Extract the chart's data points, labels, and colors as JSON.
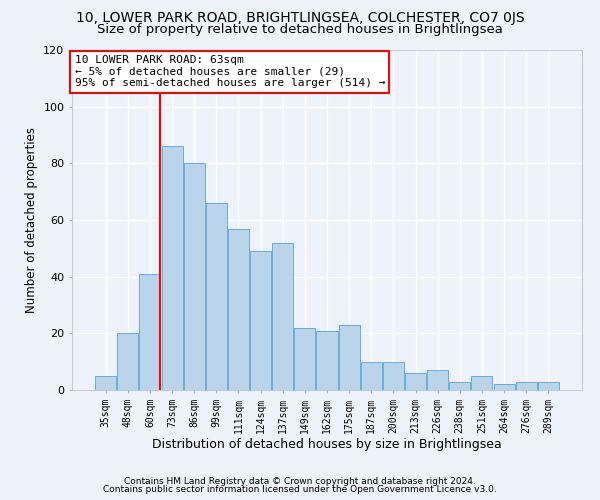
{
  "title1": "10, LOWER PARK ROAD, BRIGHTLINGSEA, COLCHESTER, CO7 0JS",
  "title2": "Size of property relative to detached houses in Brightlingsea",
  "xlabel": "Distribution of detached houses by size in Brightlingsea",
  "ylabel": "Number of detached properties",
  "categories": [
    "35sqm",
    "48sqm",
    "60sqm",
    "73sqm",
    "86sqm",
    "99sqm",
    "111sqm",
    "124sqm",
    "137sqm",
    "149sqm",
    "162sqm",
    "175sqm",
    "187sqm",
    "200sqm",
    "213sqm",
    "226sqm",
    "238sqm",
    "251sqm",
    "264sqm",
    "276sqm",
    "289sqm"
  ],
  "values": [
    5,
    20,
    41,
    86,
    80,
    66,
    57,
    49,
    52,
    22,
    21,
    23,
    10,
    10,
    6,
    7,
    3,
    5,
    2,
    3,
    3
  ],
  "bar_color": "#bad4ec",
  "bar_edge_color": "#6aaed6",
  "red_line_bar_index": 2,
  "annotation_text_line1": "10 LOWER PARK ROAD: 63sqm",
  "annotation_text_line2": "← 5% of detached houses are smaller (29)",
  "annotation_text_line3": "95% of semi-detached houses are larger (514) →",
  "annotation_box_color": "white",
  "annotation_box_edge": "red",
  "ylim": [
    0,
    120
  ],
  "yticks": [
    0,
    20,
    40,
    60,
    80,
    100,
    120
  ],
  "footer1": "Contains HM Land Registry data © Crown copyright and database right 2024.",
  "footer2": "Contains public sector information licensed under the Open Government Licence v3.0.",
  "bg_color": "#eef2fb",
  "grid_color": "#ffffff",
  "title1_fontsize": 10,
  "title2_fontsize": 9.5,
  "xlabel_fontsize": 9,
  "ylabel_fontsize": 8.5,
  "footer_fontsize": 6.5,
  "annotation_fontsize": 8
}
